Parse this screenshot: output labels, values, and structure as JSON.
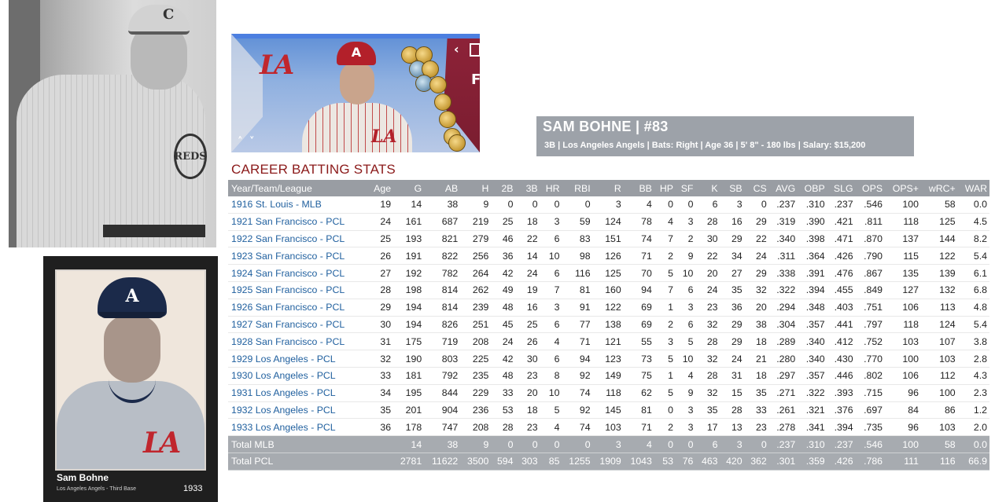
{
  "player": {
    "name": "SAM BOHNE",
    "number": "#83",
    "name_line": "SAM BOHNE  |  #83",
    "info_line": "3B | Los Angeles Angels  |  Bats: Right  |  Age 36  |  5' 8\" - 180 lbs  |  Salary: $15,200"
  },
  "photo": {
    "cap_letter": "C",
    "jersey_text": "REDS"
  },
  "banner": {
    "cap_letter": "A",
    "team_logo": "LA",
    "chevron": "‹",
    "side_letter": "F",
    "nav_arrows": "˄ ˅"
  },
  "section_title": "CAREER BATTING STATS",
  "table": {
    "headers": [
      "Year/Team/League",
      "Age",
      "G",
      "AB",
      "H",
      "2B",
      "3B",
      "HR",
      "RBI",
      "R",
      "BB",
      "HP",
      "SF",
      "K",
      "SB",
      "CS",
      "AVG",
      "OBP",
      "SLG",
      "OPS",
      "OPS+",
      "wRC+",
      "WAR"
    ],
    "rows": [
      [
        "1916 St. Louis - MLB",
        "19",
        "14",
        "38",
        "9",
        "0",
        "0",
        "0",
        "0",
        "3",
        "4",
        "0",
        "0",
        "6",
        "3",
        "0",
        ".237",
        ".310",
        ".237",
        ".546",
        "100",
        "58",
        "0.0"
      ],
      [
        "1921 San Francisco - PCL",
        "24",
        "161",
        "687",
        "219",
        "25",
        "18",
        "3",
        "59",
        "124",
        "78",
        "4",
        "3",
        "28",
        "16",
        "29",
        ".319",
        ".390",
        ".421",
        ".811",
        "118",
        "125",
        "4.5"
      ],
      [
        "1922 San Francisco - PCL",
        "25",
        "193",
        "821",
        "279",
        "46",
        "22",
        "6",
        "83",
        "151",
        "74",
        "7",
        "2",
        "30",
        "29",
        "22",
        ".340",
        ".398",
        ".471",
        ".870",
        "137",
        "144",
        "8.2"
      ],
      [
        "1923 San Francisco - PCL",
        "26",
        "191",
        "822",
        "256",
        "36",
        "14",
        "10",
        "98",
        "126",
        "71",
        "2",
        "9",
        "22",
        "34",
        "24",
        ".311",
        ".364",
        ".426",
        ".790",
        "115",
        "122",
        "5.4"
      ],
      [
        "1924 San Francisco - PCL",
        "27",
        "192",
        "782",
        "264",
        "42",
        "24",
        "6",
        "116",
        "125",
        "70",
        "5",
        "10",
        "20",
        "27",
        "29",
        ".338",
        ".391",
        ".476",
        ".867",
        "135",
        "139",
        "6.1"
      ],
      [
        "1925 San Francisco - PCL",
        "28",
        "198",
        "814",
        "262",
        "49",
        "19",
        "7",
        "81",
        "160",
        "94",
        "7",
        "6",
        "24",
        "35",
        "32",
        ".322",
        ".394",
        ".455",
        ".849",
        "127",
        "132",
        "6.8"
      ],
      [
        "1926 San Francisco - PCL",
        "29",
        "194",
        "814",
        "239",
        "48",
        "16",
        "3",
        "91",
        "122",
        "69",
        "1",
        "3",
        "23",
        "36",
        "20",
        ".294",
        ".348",
        ".403",
        ".751",
        "106",
        "113",
        "4.8"
      ],
      [
        "1927 San Francisco - PCL",
        "30",
        "194",
        "826",
        "251",
        "45",
        "25",
        "6",
        "77",
        "138",
        "69",
        "2",
        "6",
        "32",
        "29",
        "38",
        ".304",
        ".357",
        ".441",
        ".797",
        "118",
        "124",
        "5.4"
      ],
      [
        "1928 San Francisco - PCL",
        "31",
        "175",
        "719",
        "208",
        "24",
        "26",
        "4",
        "71",
        "121",
        "55",
        "3",
        "5",
        "28",
        "29",
        "18",
        ".289",
        ".340",
        ".412",
        ".752",
        "103",
        "107",
        "3.8"
      ],
      [
        "1929 Los Angeles - PCL",
        "32",
        "190",
        "803",
        "225",
        "42",
        "30",
        "6",
        "94",
        "123",
        "73",
        "5",
        "10",
        "32",
        "24",
        "21",
        ".280",
        ".340",
        ".430",
        ".770",
        "100",
        "103",
        "2.8"
      ],
      [
        "1930 Los Angeles - PCL",
        "33",
        "181",
        "792",
        "235",
        "48",
        "23",
        "8",
        "92",
        "149",
        "75",
        "1",
        "4",
        "28",
        "31",
        "18",
        ".297",
        ".357",
        ".446",
        ".802",
        "106",
        "112",
        "4.3"
      ],
      [
        "1931 Los Angeles - PCL",
        "34",
        "195",
        "844",
        "229",
        "33",
        "20",
        "10",
        "74",
        "118",
        "62",
        "5",
        "9",
        "32",
        "15",
        "35",
        ".271",
        ".322",
        ".393",
        ".715",
        "96",
        "100",
        "2.3"
      ],
      [
        "1932 Los Angeles - PCL",
        "35",
        "201",
        "904",
        "236",
        "53",
        "18",
        "5",
        "92",
        "145",
        "81",
        "0",
        "3",
        "35",
        "28",
        "33",
        ".261",
        ".321",
        ".376",
        ".697",
        "84",
        "86",
        "1.2"
      ],
      [
        "1933 Los Angeles - PCL",
        "36",
        "178",
        "747",
        "208",
        "28",
        "23",
        "4",
        "74",
        "103",
        "71",
        "2",
        "3",
        "17",
        "13",
        "23",
        ".278",
        ".341",
        ".394",
        ".735",
        "96",
        "103",
        "2.0"
      ]
    ],
    "totals": [
      [
        "Total MLB",
        "",
        "14",
        "38",
        "9",
        "0",
        "0",
        "0",
        "0",
        "3",
        "4",
        "0",
        "0",
        "6",
        "3",
        "0",
        ".237",
        ".310",
        ".237",
        ".546",
        "100",
        "58",
        "0.0"
      ],
      [
        "Total PCL",
        "",
        "2781",
        "11622",
        "3500",
        "594",
        "303",
        "85",
        "1255",
        "1909",
        "1043",
        "53",
        "76",
        "463",
        "420",
        "362",
        ".301",
        ".359",
        ".426",
        ".786",
        "111",
        "116",
        "66.9"
      ]
    ]
  },
  "card": {
    "cap_letter": "A",
    "team_logo": "LA",
    "name": "Sam Bohne",
    "team_position": "Los Angeles Angels - Third Base",
    "year": "1933"
  }
}
